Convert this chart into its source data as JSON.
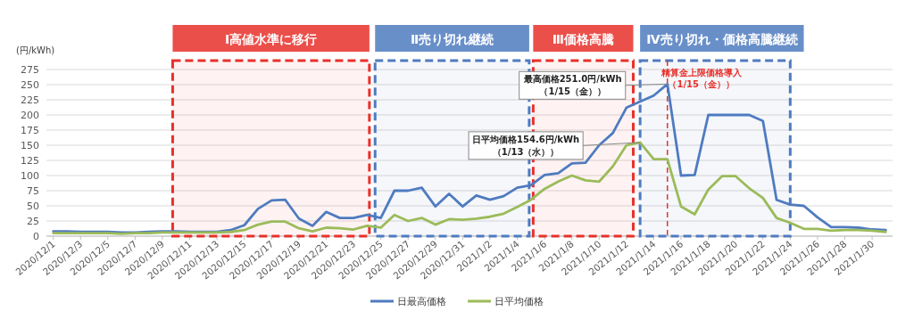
{
  "chart_data": {
    "type": "line",
    "ylabel": "(円/kWh)",
    "x": [
      "2020-12-01",
      "2020-12-02",
      "2020-12-03",
      "2020-12-04",
      "2020-12-05",
      "2020-12-06",
      "2020-12-07",
      "2020-12-08",
      "2020-12-09",
      "2020-12-10",
      "2020-12-11",
      "2020-12-12",
      "2020-12-13",
      "2020-12-14",
      "2020-12-15",
      "2020-12-16",
      "2020-12-17",
      "2020-12-18",
      "2020-12-19",
      "2020-12-20",
      "2020-12-21",
      "2020-12-22",
      "2020-12-23",
      "2020-12-24",
      "2020-12-25",
      "2020-12-26",
      "2020-12-27",
      "2020-12-28",
      "2020-12-29",
      "2020-12-30",
      "2020-12-31",
      "2021-01-01",
      "2021-01-02",
      "2021-01-03",
      "2021-01-04",
      "2021-01-05",
      "2021-01-06",
      "2021-01-07",
      "2021-01-08",
      "2021-01-09",
      "2021-01-10",
      "2021-01-11",
      "2021-01-12",
      "2021-01-13",
      "2021-01-14",
      "2021-01-15",
      "2021-01-16",
      "2021-01-17",
      "2021-01-18",
      "2021-01-19",
      "2021-01-20",
      "2021-01-21",
      "2021-01-22",
      "2021-01-23",
      "2021-01-24",
      "2021-01-25",
      "2021-01-26",
      "2021-01-27",
      "2021-01-28",
      "2021-01-29",
      "2021-01-30",
      "2021-01-31"
    ],
    "series": [
      {
        "name": "日最高価格",
        "color": "#4f7bc0",
        "values": [
          8,
          8,
          7,
          7,
          7,
          6,
          6,
          7,
          8,
          8,
          7,
          7,
          7,
          10,
          18,
          45,
          59,
          60,
          29,
          17,
          40,
          30,
          30,
          35,
          30,
          75,
          75,
          80,
          49,
          70,
          49,
          67,
          60,
          66,
          80,
          84,
          101,
          104,
          120,
          121,
          150,
          170,
          212,
          222,
          232,
          251,
          100,
          101,
          200,
          200,
          200,
          200,
          190,
          60,
          52,
          50,
          31,
          15,
          15,
          14,
          11,
          10
        ]
      },
      {
        "name": "日平均価格",
        "color": "#9bbb59",
        "values": [
          5,
          5,
          5,
          5,
          5,
          4,
          5,
          5,
          6,
          6,
          6,
          6,
          6,
          7,
          10,
          19,
          24,
          24,
          13,
          8,
          14,
          13,
          11,
          17,
          14,
          35,
          25,
          30,
          19,
          28,
          27,
          29,
          32,
          37,
          48,
          60,
          78,
          90,
          100,
          92,
          90,
          115,
          150,
          154.6,
          127,
          127,
          49,
          36,
          77,
          99,
          99,
          79,
          63,
          30,
          22,
          12,
          12,
          9,
          10,
          10,
          9,
          7
        ]
      }
    ],
    "xlim": [
      "2020-11-30T12:00",
      "2021-01-31T12:00"
    ],
    "xticks": [
      {
        "value": "2020-12-01",
        "label": "2020/12/1"
      },
      {
        "value": "2020-12-03",
        "label": "2020/12/3"
      },
      {
        "value": "2020-12-05",
        "label": "2020/12/5"
      },
      {
        "value": "2020-12-07",
        "label": "2020/12/7"
      },
      {
        "value": "2020-12-09",
        "label": "2020/12/9"
      },
      {
        "value": "2020-12-11",
        "label": "2020/12/11"
      },
      {
        "value": "2020-12-13",
        "label": "2020/12/13"
      },
      {
        "value": "2020-12-15",
        "label": "2020/12/15"
      },
      {
        "value": "2020-12-17",
        "label": "2020/12/17"
      },
      {
        "value": "2020-12-19",
        "label": "2020/12/19"
      },
      {
        "value": "2020-12-21",
        "label": "2020/12/21"
      },
      {
        "value": "2020-12-23",
        "label": "2020/12/23"
      },
      {
        "value": "2020-12-25",
        "label": "2020/12/25"
      },
      {
        "value": "2020-12-27",
        "label": "2020/12/27"
      },
      {
        "value": "2020-12-29",
        "label": "2020/12/29"
      },
      {
        "value": "2020-12-31",
        "label": "2020/12/31"
      },
      {
        "value": "2021-01-02",
        "label": "2021/1/2"
      },
      {
        "value": "2021-01-04",
        "label": "2021/1/4"
      },
      {
        "value": "2021-01-06",
        "label": "2021/1/6"
      },
      {
        "value": "2021-01-08",
        "label": "2021/1/8"
      },
      {
        "value": "2021-01-10",
        "label": "2021/1/10"
      },
      {
        "value": "2021-01-12",
        "label": "2021/1/12"
      },
      {
        "value": "2021-01-14",
        "label": "2021/1/14"
      },
      {
        "value": "2021-01-16",
        "label": "2021/1/16"
      },
      {
        "value": "2021-01-18",
        "label": "2021/1/18"
      },
      {
        "value": "2021-01-20",
        "label": "2021/1/20"
      },
      {
        "value": "2021-01-22",
        "label": "2021/1/22"
      },
      {
        "value": "2021-01-24",
        "label": "2021/1/24"
      },
      {
        "value": "2021-01-26",
        "label": "2021/1/26"
      },
      {
        "value": "2021-01-28",
        "label": "2021/1/28"
      },
      {
        "value": "2021-01-30",
        "label": "2021/1/30"
      }
    ],
    "ylim": [
      0,
      275
    ],
    "yticks": [
      0,
      25,
      50,
      75,
      100,
      125,
      150,
      175,
      200,
      225,
      250,
      275
    ],
    "grid": "y",
    "legend": "bottom",
    "line_style": "solid",
    "bands": [
      {
        "axis": "x",
        "from": "2020-12-09T18:00",
        "to": "2020-12-24T04:00",
        "label": "Ⅰ高値水準に移行",
        "color": "#e8302a"
      },
      {
        "axis": "x",
        "from": "2020-12-24T14:00",
        "to": "2021-01-04T21:00",
        "label": "Ⅱ売り切れ継続",
        "color": "#4f7bc0"
      },
      {
        "axis": "x",
        "from": "2021-01-05T04:00",
        "to": "2021-01-12T12:00",
        "label": "Ⅲ価格高騰",
        "color": "#e8302a"
      },
      {
        "axis": "x",
        "from": "2021-01-13T00:00",
        "to": "2021-01-24T00:00",
        "label": "Ⅳ売り切れ・価格高騰継続",
        "color": "#4f7bc0"
      }
    ],
    "ref_lines": [
      {
        "axis": "x",
        "value": "2021-01-15",
        "label": "精算金上限価格導入（1/15（金））",
        "color": "#e8302a",
        "line_style": "dashed"
      }
    ],
    "annotations": [
      {
        "text": "最高価格251.0円/kWh\n（1/15（金））",
        "x": "2021-01-15",
        "y": 251
      },
      {
        "text": "日平均価格154.6円/kWh\n（1/13（水））",
        "x": "2021-01-13",
        "y": 154.6
      }
    ]
  }
}
